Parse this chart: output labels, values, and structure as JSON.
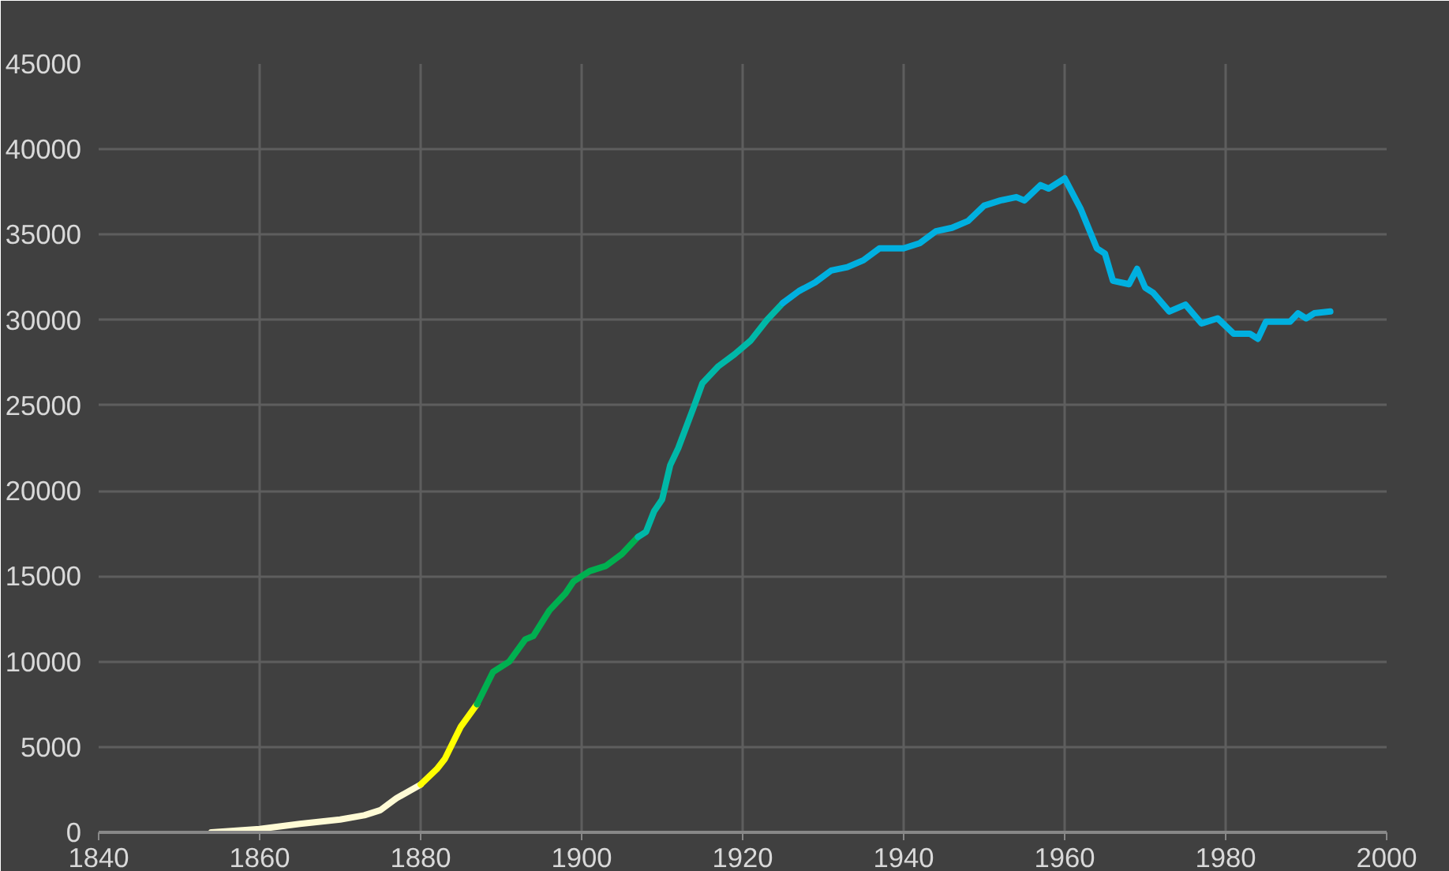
{
  "chart_data": {
    "type": "line",
    "xlim": [
      1840,
      2000
    ],
    "xticks": [
      1840,
      1860,
      1880,
      1900,
      1920,
      1940,
      1960,
      1980,
      2000
    ],
    "ylim": [
      0,
      45000
    ],
    "yticks": [
      0,
      5000,
      10000,
      15000,
      20000,
      25000,
      30000,
      35000,
      40000,
      45000
    ],
    "grid": true,
    "marker": "none",
    "line_style": "solid",
    "series": [
      {
        "color": "#fffbd5",
        "x": [
          1854,
          1860,
          1865,
          1870,
          1873,
          1875,
          1877,
          1880
        ],
        "values": [
          0,
          200,
          500,
          750,
          1000,
          1300,
          2000,
          2800
        ]
      },
      {
        "color": "#ffff00",
        "x": [
          1880,
          1882,
          1883,
          1885,
          1887
        ],
        "values": [
          2800,
          3700,
          4300,
          6200,
          7500
        ]
      },
      {
        "color": "#00b050",
        "x": [
          1887,
          1889,
          1891,
          1893,
          1894,
          1896,
          1898,
          1899,
          1901,
          1903,
          1905,
          1907
        ],
        "values": [
          7500,
          9400,
          10000,
          11300,
          11500,
          13000,
          14000,
          14700,
          15300,
          15600,
          16300,
          17300
        ]
      },
      {
        "color": "#00b8a8",
        "x": [
          1907,
          1908,
          1909,
          1910,
          1911,
          1912,
          1914,
          1915,
          1917,
          1919,
          1921,
          1923,
          1925
        ],
        "values": [
          17300,
          17600,
          18800,
          19500,
          21500,
          22500,
          25000,
          26300,
          27300,
          28000,
          28800,
          30000,
          31000
        ]
      },
      {
        "color": "#00b0e0",
        "x": [
          1925,
          1927,
          1929,
          1931,
          1933,
          1935,
          1937,
          1940,
          1942,
          1944,
          1946,
          1948,
          1950,
          1952,
          1954,
          1955,
          1957,
          1958,
          1960,
          1962,
          1964,
          1965,
          1966,
          1968,
          1969,
          1970,
          1971,
          1973,
          1975,
          1977,
          1979,
          1981,
          1983,
          1984,
          1985,
          1988,
          1989,
          1990,
          1991,
          1993
        ],
        "values": [
          31000,
          31700,
          32200,
          32900,
          33100,
          33500,
          34200,
          34200,
          34500,
          35200,
          35400,
          35800,
          36700,
          37000,
          37200,
          37000,
          37900,
          37700,
          38300,
          36500,
          34200,
          33900,
          32300,
          32100,
          33000,
          31900,
          31600,
          30500,
          30900,
          29800,
          30100,
          29200,
          29200,
          28900,
          29900,
          29900,
          30400,
          30100,
          30400,
          30500
        ]
      }
    ]
  }
}
